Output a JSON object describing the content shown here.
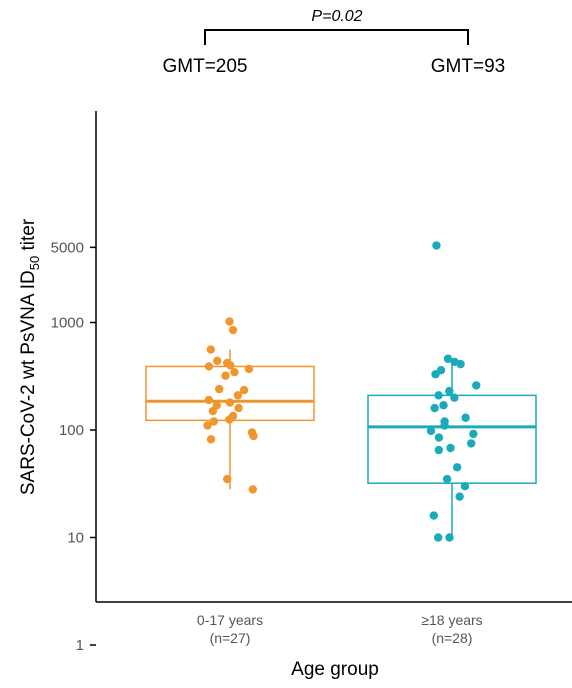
{
  "chart_data": {
    "type": "box",
    "xlabel": "Age group",
    "ylabel_main": "SARS-CoV-2 wt PsVNA ID",
    "ylabel_sub": "50",
    "ylabel_end": " titer",
    "y_scale": "log10",
    "ylim": [
      0.35,
      15000
    ],
    "y_ticks": [
      1,
      10,
      100,
      1000,
      5000
    ],
    "y_tick_labels": [
      "1",
      "10",
      "100",
      "1000",
      "5000"
    ],
    "grid": false,
    "comparison": {
      "label": "P=0.02",
      "between": [
        "0-17 years",
        "≥18 years"
      ]
    },
    "groups": [
      {
        "label": "0-17 years",
        "n_label": "(n=27)",
        "gmt_label": "GMT=205",
        "color": "#F0962F",
        "box": {
          "whisker_low": 28,
          "q1": 123,
          "median": 185,
          "q3": 390,
          "whisker_high": 560
        },
        "points": [
          1020,
          850,
          560,
          440,
          420,
          400,
          390,
          370,
          345,
          320,
          240,
          235,
          210,
          190,
          180,
          170,
          160,
          150,
          135,
          125,
          120,
          110,
          95,
          88,
          82,
          35,
          28
        ]
      },
      {
        "label": "≥18 years",
        "n_label": "(n=28)",
        "gmt_label": "GMT=93",
        "color": "#1AABBA",
        "box": {
          "whisker_low": 10,
          "q1": 32,
          "median": 107,
          "q3": 210,
          "whisker_high": 440
        },
        "points": [
          5200,
          460,
          430,
          410,
          360,
          330,
          260,
          230,
          210,
          200,
          170,
          160,
          130,
          120,
          110,
          98,
          92,
          85,
          75,
          68,
          65,
          45,
          35,
          30,
          24,
          16,
          10,
          10
        ]
      }
    ]
  }
}
